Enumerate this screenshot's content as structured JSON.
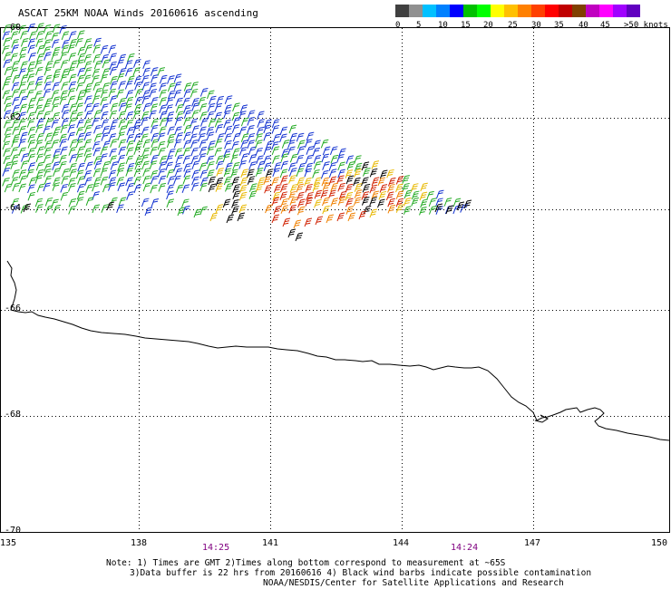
{
  "title": "ASCAT 25KM NOAA Winds 20160616 ascending",
  "map": {
    "lat_labels": [
      "-60",
      "-62",
      "-64",
      "-66",
      "-68",
      "-70"
    ],
    "lon_labels": [
      "135",
      "138",
      "141",
      "144",
      "147",
      "150"
    ],
    "time_labels": [
      "14:25",
      "14:24"
    ],
    "lat_range": [
      -70,
      -60
    ],
    "lon_range": [
      135,
      150
    ]
  },
  "colorbar": {
    "labels": [
      "0",
      "5",
      "10",
      "15",
      "20",
      "25",
      "30",
      "35",
      "40",
      "45",
      ">50 knots"
    ],
    "colors": [
      "#404040",
      "#909090",
      "#00c0ff",
      "#0080ff",
      "#0000ff",
      "#00c000",
      "#00ff00",
      "#ffff00",
      "#ffc000",
      "#ff8000",
      "#ff4000",
      "#ff0000",
      "#c00000",
      "#804000",
      "#c000c0",
      "#ff00ff",
      "#a000ff",
      "#6000c0"
    ]
  },
  "notes": {
    "line1": "Note: 1) Times are GMT 2)Times along bottom correspond to measurement at ~65S",
    "line2": "3)Data buffer is 22 hrs from 20160616 4) Black wind barbs indicate possible contamination",
    "line3": "NOAA/NESDIS/Center for Satellite Applications and Research"
  },
  "barb_colors": {
    "green": "#22aa22",
    "blue": "#1030d0",
    "yellow": "#e8b800",
    "orange": "#f08000",
    "red": "#d02000",
    "black": "#000000"
  }
}
